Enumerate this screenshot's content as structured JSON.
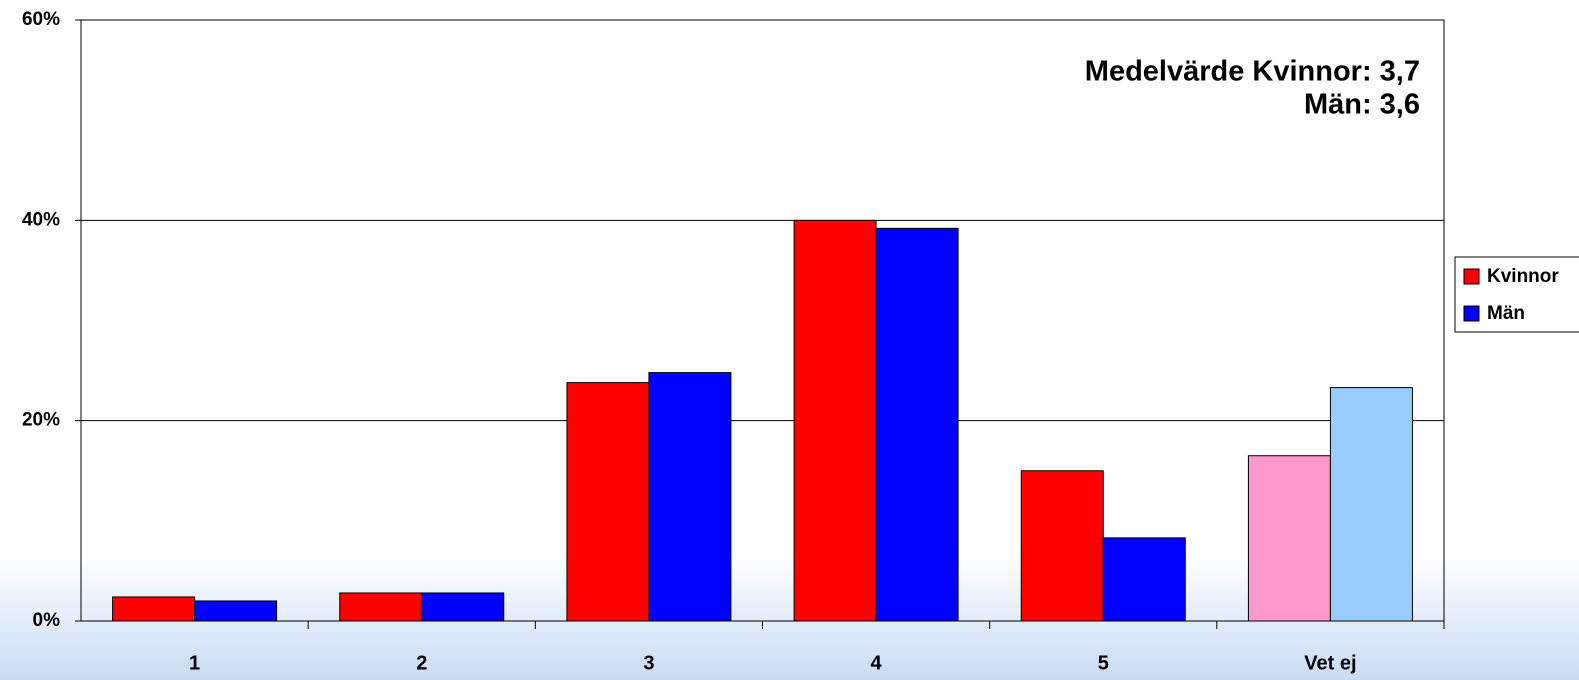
{
  "chart_data": {
    "type": "bar",
    "annotations": [
      "Medelvärde Kvinnor: 3,7",
      "Män: 3,6"
    ],
    "categories": [
      "1",
      "2",
      "3",
      "4",
      "5",
      "Vet ej"
    ],
    "series": [
      {
        "name": "Kvinnor",
        "color": "#ff0000",
        "colors": [
          "#ff0000",
          "#ff0000",
          "#ff0000",
          "#ff0000",
          "#ff0000",
          "#ff99cc"
        ],
        "values": [
          2.4,
          2.8,
          23.8,
          40,
          15,
          16.5
        ]
      },
      {
        "name": "Män",
        "color": "#0000ff",
        "colors": [
          "#0000ff",
          "#0000ff",
          "#0000ff",
          "#0000ff",
          "#0000ff",
          "#99ccff"
        ],
        "values": [
          2.0,
          2.8,
          24.8,
          39.2,
          8.3,
          23.3
        ]
      }
    ],
    "ylim": [
      0,
      60
    ],
    "yticks": [
      {
        "value": 0,
        "label": "0%"
      },
      {
        "value": 20,
        "label": "20%"
      },
      {
        "value": 40,
        "label": "40%"
      },
      {
        "value": 60,
        "label": "60%"
      }
    ],
    "grid": true,
    "legend": "right"
  }
}
